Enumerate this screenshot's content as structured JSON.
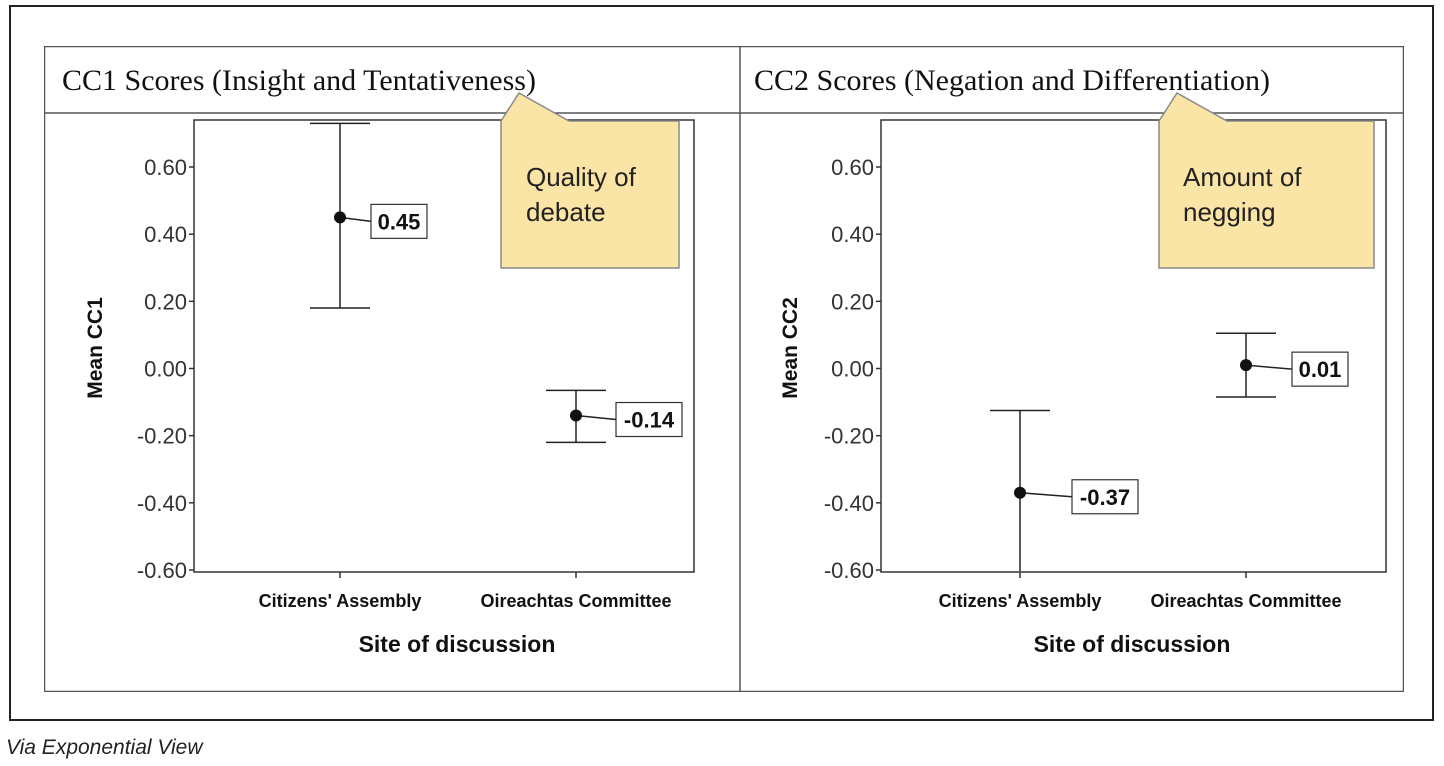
{
  "chart_data": [
    {
      "type": "errorbar",
      "title": "CC1 Scores (Insight and Tentativeness)",
      "xlabel": "Site of discussion",
      "ylabel": "Mean CC1",
      "categories": [
        "Citizens' Assembly",
        "Oireachtas Committee"
      ],
      "means": [
        0.45,
        -0.14
      ],
      "mean_labels": [
        "0.45",
        "-0.14"
      ],
      "error_low": [
        0.18,
        -0.22
      ],
      "error_high": [
        0.73,
        -0.065
      ],
      "yticks": [
        "0.60",
        "0.40",
        "0.20",
        "0.00",
        "-0.20",
        "-0.40",
        "-0.60"
      ],
      "ytick_values": [
        0.6,
        0.4,
        0.2,
        0.0,
        -0.2,
        -0.4,
        -0.6
      ],
      "ylim": [
        -0.61,
        0.74
      ],
      "callout": "Quality of\ndebate",
      "callout_lines": [
        "Quality of",
        "debate"
      ]
    },
    {
      "type": "errorbar",
      "title": "CC2 Scores (Negation and Differentiation)",
      "xlabel": "Site of discussion",
      "ylabel": "Mean CC2",
      "categories": [
        "Citizens' Assembly",
        "Oireachtas Committee"
      ],
      "means": [
        -0.37,
        0.01
      ],
      "mean_labels": [
        "-0.37",
        "0.01"
      ],
      "error_low": [
        -0.64,
        -0.085
      ],
      "error_high": [
        -0.125,
        0.105
      ],
      "yticks": [
        "0.60",
        "0.40",
        "0.20",
        "0.00",
        "-0.20",
        "-0.40",
        "-0.60"
      ],
      "ytick_values": [
        0.6,
        0.4,
        0.2,
        0.0,
        -0.2,
        -0.4,
        -0.6
      ],
      "ylim": [
        -0.61,
        0.74
      ],
      "callout": "Amount of\nnegging",
      "callout_lines": [
        "Amount of",
        "negging"
      ]
    }
  ],
  "credit": "Via Exponential View",
  "colors": {
    "callout_fill": "#fbe5a6",
    "callout_stroke": "#8a8a8a",
    "ink": "#111111",
    "border": "#555555"
  }
}
